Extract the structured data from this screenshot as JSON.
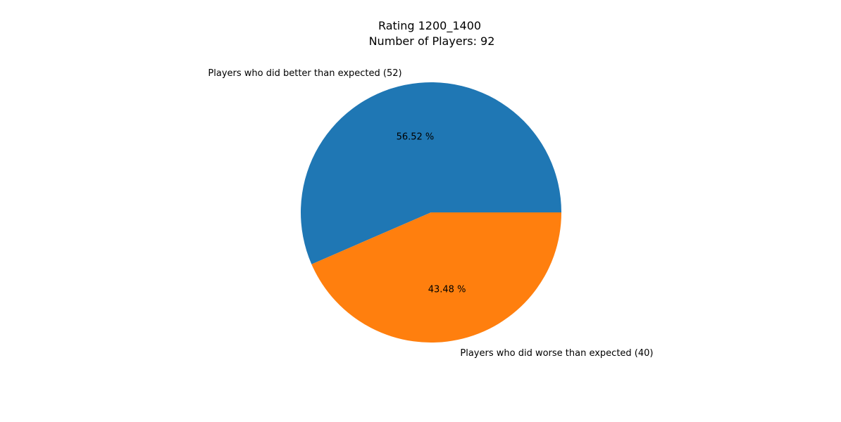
{
  "chart_data": {
    "type": "pie",
    "title_lines": [
      "Rating 1200_1400",
      "Number of Players: 92"
    ],
    "slices": [
      {
        "label": "Players who did better than expected (52)",
        "value": 52,
        "pct_label": "56.52 %",
        "color": "#1f77b4"
      },
      {
        "label": "Players who did worse than expected (40)",
        "value": 40,
        "pct_label": "43.48 %",
        "color": "#ff7f0e"
      }
    ],
    "start_angle_deg": 0,
    "direction": "counterclockwise"
  }
}
